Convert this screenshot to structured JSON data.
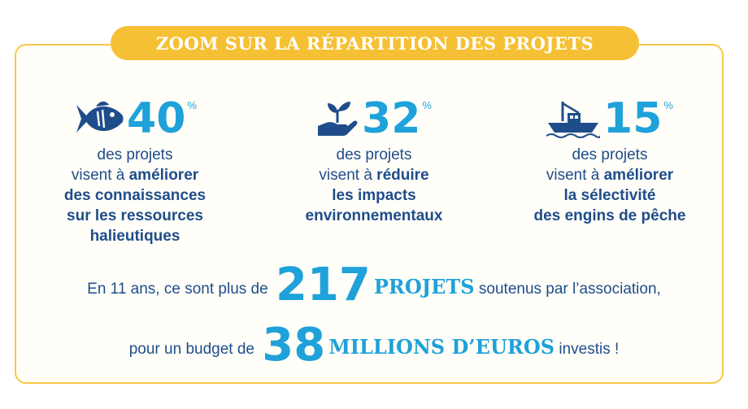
{
  "title": "ZOOM SUR LA RÉPARTITION DES PROJETS",
  "stats": [
    {
      "icon": "fish-icon",
      "value": "40",
      "unit": "%",
      "lead": "des projets",
      "line1_plain": "visent à ",
      "line1_bold": "améliorer",
      "rest": [
        "des connaissances",
        "sur les ressources",
        "halieutiques"
      ]
    },
    {
      "icon": "plant-in-hand-icon",
      "value": "32",
      "unit": "%",
      "lead": "des projets",
      "line1_plain": "visent à ",
      "line1_bold": "réduire",
      "rest": [
        "les impacts",
        "environnementaux"
      ]
    },
    {
      "icon": "fishing-boat-icon",
      "value": "15",
      "unit": "%",
      "lead": "des projets",
      "line1_plain": "visent à ",
      "line1_bold": "améliorer",
      "rest": [
        "la sélectivité",
        "des engins de pêche"
      ]
    }
  ],
  "summary": {
    "line1_prefix": "En 11 ans, ce sont plus de",
    "projects_count": "217",
    "projects_word": "PROJETS",
    "line1_suffix": "soutenus par l’association,",
    "line2_prefix": "pour un budget de",
    "budget_amount": "38",
    "budget_word": "MILLIONS D’EUROS",
    "line2_suffix": "investis !"
  },
  "colors": {
    "accent_yellow": "#f5c033",
    "frame_border": "#f9c844",
    "dark_blue": "#1f4d8a",
    "light_blue": "#1fa1d9"
  }
}
